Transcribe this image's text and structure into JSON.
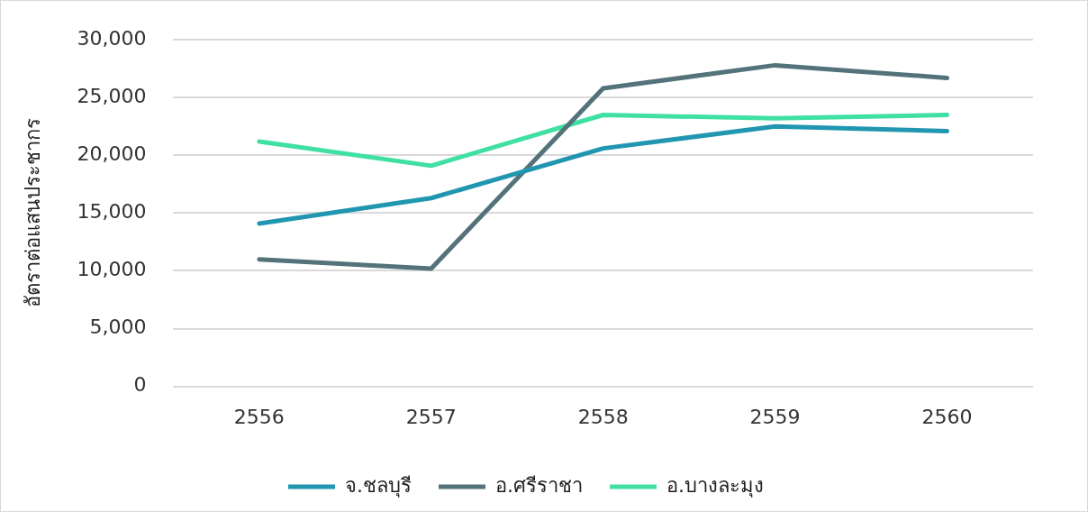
{
  "chart_data": {
    "type": "line",
    "ylabel": "อัตราต่อแสนประชากร",
    "categories": [
      "2556",
      "2557",
      "2558",
      "2559",
      "2560"
    ],
    "series": [
      {
        "name": "จ.ชลบุรี",
        "color": "#2196b0",
        "values": [
          14100,
          16300,
          20600,
          22500,
          22100
        ]
      },
      {
        "name": "อ.ศรีราชา",
        "color": "#53727a",
        "values": [
          11000,
          10200,
          25800,
          27800,
          26700
        ]
      },
      {
        "name": "อ.บางละมุง",
        "color": "#40e0a3",
        "values": [
          21200,
          19100,
          23500,
          23200,
          23500
        ]
      }
    ],
    "ylim": [
      0,
      30000
    ],
    "yticks": [
      0,
      {
        "value": 5000,
        "label": "5,000"
      },
      {
        "value": 10000,
        "label": "10,000"
      },
      {
        "value": 15000,
        "label": "15,000"
      },
      {
        "value": 20000,
        "label": "20,000"
      },
      {
        "value": 25000,
        "label": "25,000"
      },
      {
        "value": 30000,
        "label": "30,000"
      }
    ],
    "grid": "y",
    "legend": "bottom",
    "marker": "none",
    "line_style": "solid"
  }
}
